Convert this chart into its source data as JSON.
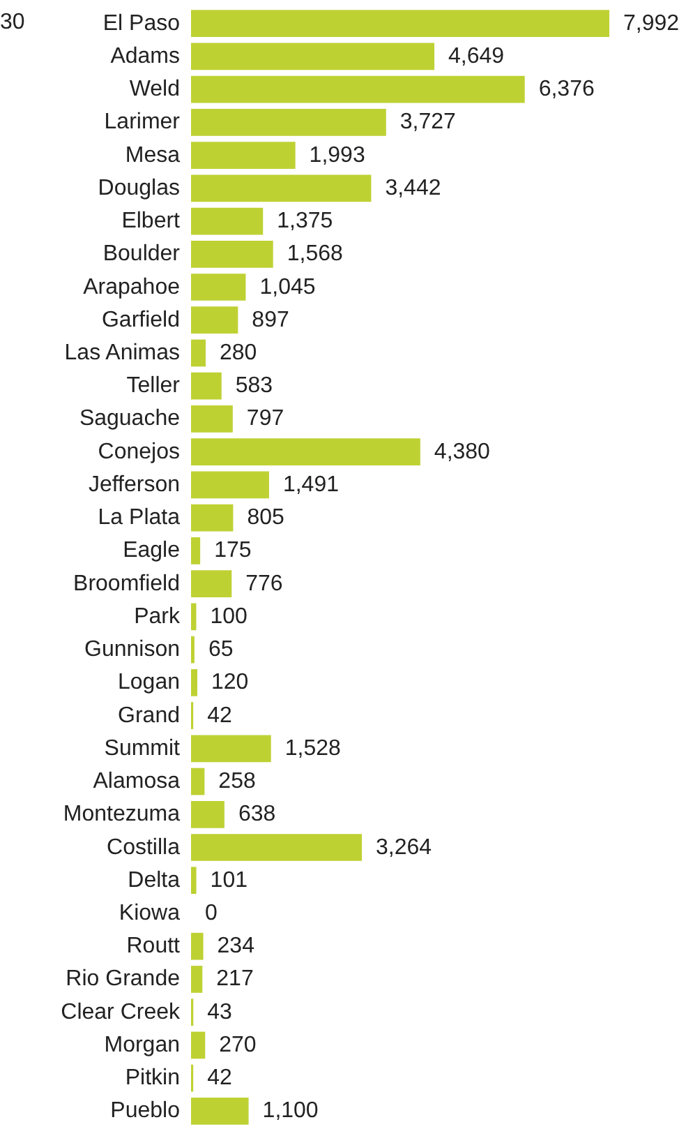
{
  "chart_data": {
    "type": "bar",
    "orientation": "horizontal",
    "categories": [
      "El Paso",
      "Adams",
      "Weld",
      "Larimer",
      "Mesa",
      "Douglas",
      "Elbert",
      "Boulder",
      "Arapahoe",
      "Garfield",
      "Las Animas",
      "Teller",
      "Saguache",
      "Conejos",
      "Jefferson",
      "La Plata",
      "Eagle",
      "Broomfield",
      "Park",
      "Gunnison",
      "Logan",
      "Grand",
      "Summit",
      "Alamosa",
      "Montezuma",
      "Costilla",
      "Delta",
      "Kiowa",
      "Routt",
      "Rio Grande",
      "Clear Creek",
      "Morgan",
      "Pitkin",
      "Pueblo"
    ],
    "values": [
      7992,
      4649,
      6376,
      3727,
      1993,
      3442,
      1375,
      1568,
      1045,
      897,
      280,
      583,
      797,
      4380,
      1491,
      805,
      175,
      776,
      100,
      65,
      120,
      42,
      1528,
      258,
      638,
      3264,
      101,
      0,
      234,
      217,
      43,
      270,
      42,
      1100
    ],
    "value_labels": [
      "7,992",
      "4,649",
      "6,376",
      "3,727",
      "1,993",
      "3,442",
      "1,375",
      "1,568",
      "1,045",
      "897",
      "280",
      "583",
      "797",
      "4,380",
      "1,491",
      "805",
      "175",
      "776",
      "100",
      "65",
      "120",
      "42",
      "1,528",
      "258",
      "638",
      "3,264",
      "101",
      "0",
      "234",
      "217",
      "43",
      "270",
      "42",
      "1,100"
    ],
    "color": "#bed133",
    "annotations": [
      "30"
    ]
  }
}
